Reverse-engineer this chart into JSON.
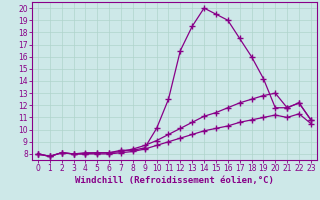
{
  "xlabel": "Windchill (Refroidissement éolien,°C)",
  "background_color": "#cde8e8",
  "grid_color": "#b0d4cc",
  "line_color": "#880088",
  "xlim": [
    -0.5,
    23.5
  ],
  "ylim": [
    7.5,
    20.5
  ],
  "xticks": [
    0,
    1,
    2,
    3,
    4,
    5,
    6,
    7,
    8,
    9,
    10,
    11,
    12,
    13,
    14,
    15,
    16,
    17,
    18,
    19,
    20,
    21,
    22,
    23
  ],
  "yticks": [
    8,
    9,
    10,
    11,
    12,
    13,
    14,
    15,
    16,
    17,
    18,
    19,
    20
  ],
  "line1_x": [
    0,
    1,
    2,
    3,
    4,
    5,
    6,
    7,
    8,
    9,
    10,
    11,
    12,
    13,
    14,
    15,
    16,
    17,
    18,
    19,
    20,
    21,
    22,
    23
  ],
  "line1_y": [
    8.0,
    7.8,
    8.1,
    8.0,
    8.1,
    8.1,
    8.1,
    8.3,
    8.3,
    8.5,
    10.1,
    12.5,
    16.5,
    18.5,
    20.0,
    19.5,
    19.0,
    17.5,
    16.0,
    14.2,
    11.8,
    11.8,
    12.2,
    10.8
  ],
  "line2_x": [
    0,
    1,
    2,
    3,
    4,
    5,
    6,
    7,
    8,
    9,
    10,
    11,
    12,
    13,
    14,
    15,
    16,
    17,
    18,
    19,
    20,
    21,
    22,
    23
  ],
  "line2_y": [
    8.0,
    7.8,
    8.1,
    8.0,
    8.0,
    8.1,
    8.1,
    8.2,
    8.4,
    8.7,
    9.1,
    9.6,
    10.1,
    10.6,
    11.1,
    11.4,
    11.8,
    12.2,
    12.5,
    12.8,
    13.0,
    11.8,
    12.2,
    10.8
  ],
  "line3_x": [
    0,
    1,
    2,
    3,
    4,
    5,
    6,
    7,
    8,
    9,
    10,
    11,
    12,
    13,
    14,
    15,
    16,
    17,
    18,
    19,
    20,
    21,
    22,
    23
  ],
  "line3_y": [
    8.0,
    7.8,
    8.1,
    8.0,
    8.0,
    8.0,
    8.0,
    8.1,
    8.2,
    8.4,
    8.7,
    9.0,
    9.3,
    9.6,
    9.9,
    10.1,
    10.3,
    10.6,
    10.8,
    11.0,
    11.2,
    11.0,
    11.3,
    10.5
  ],
  "marker": "+",
  "markersize": 4,
  "markeredgewidth": 1.0,
  "linewidth": 0.9,
  "tick_labelsize": 5.5,
  "xlabel_fontsize": 6.5,
  "tick_color": "#880088",
  "axis_color": "#880088"
}
